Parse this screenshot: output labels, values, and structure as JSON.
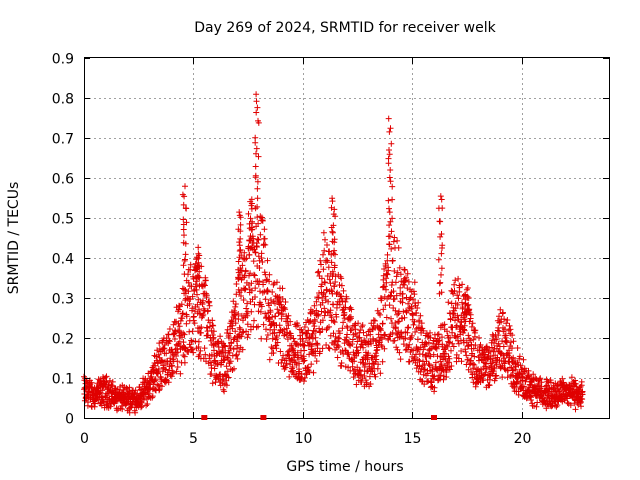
{
  "chart_data": {
    "type": "scatter",
    "title": "Day 269 of 2024, SRMTID for receiver welk",
    "xlabel": "GPS time / hours",
    "ylabel": "SRMTID / TECUs",
    "xlim": [
      0,
      24
    ],
    "ylim": [
      0,
      0.9
    ],
    "xticks": [
      "0",
      "5",
      "10",
      "15",
      "20"
    ],
    "xtick_values": [
      0,
      5,
      10,
      15,
      20
    ],
    "yticks": [
      "0",
      "0.1",
      "0.2",
      "0.3",
      "0.4",
      "0.5",
      "0.6",
      "0.7",
      "0.8",
      "0.9"
    ],
    "ytick_values": [
      0,
      0.1,
      0.2,
      0.3,
      0.4,
      0.5,
      0.6,
      0.7,
      0.8,
      0.9
    ],
    "grid": true,
    "marker": "plus",
    "color": "#e00000",
    "axis_markers_x": [
      5.5,
      8.2,
      16.0
    ],
    "series": [
      {
        "name": "SRMTID",
        "envelope_x": [
          0,
          0.5,
          1,
          1.5,
          2,
          2.5,
          3,
          3.5,
          4,
          4.5,
          5,
          5.5,
          6,
          6.5,
          7,
          7.5,
          8,
          8.5,
          9,
          9.5,
          10,
          10.5,
          11,
          11.5,
          12,
          12.5,
          13,
          13.5,
          14,
          14.5,
          15,
          15.5,
          16,
          16.5,
          17,
          17.5,
          18,
          18.5,
          19,
          19.5,
          20,
          20.5,
          21,
          21.5,
          22,
          22.5,
          22.8
        ],
        "envelope_y": [
          0.07,
          0.06,
          0.07,
          0.05,
          0.05,
          0.05,
          0.08,
          0.14,
          0.16,
          0.24,
          0.28,
          0.27,
          0.15,
          0.14,
          0.25,
          0.32,
          0.4,
          0.26,
          0.24,
          0.18,
          0.16,
          0.2,
          0.34,
          0.28,
          0.22,
          0.16,
          0.16,
          0.2,
          0.36,
          0.28,
          0.26,
          0.16,
          0.14,
          0.18,
          0.26,
          0.22,
          0.14,
          0.12,
          0.2,
          0.16,
          0.1,
          0.08,
          0.06,
          0.06,
          0.07,
          0.06,
          0.06
        ],
        "spikes": [
          {
            "x": 4.6,
            "y": 0.58
          },
          {
            "x": 5.2,
            "y": 0.42
          },
          {
            "x": 7.1,
            "y": 0.51
          },
          {
            "x": 7.6,
            "y": 0.55
          },
          {
            "x": 7.9,
            "y": 0.81
          },
          {
            "x": 11.4,
            "y": 0.55
          },
          {
            "x": 14.0,
            "y": 0.74
          },
          {
            "x": 16.3,
            "y": 0.56
          },
          {
            "x": 17.5,
            "y": 0.32
          }
        ]
      }
    ]
  }
}
